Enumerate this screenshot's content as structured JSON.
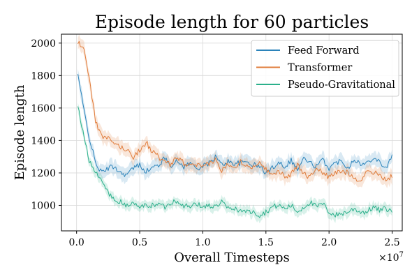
{
  "chart_data": {
    "type": "line",
    "title": "Episode length for 60 particles",
    "xlabel": "Overall Timesteps",
    "ylabel": "Episode length",
    "x_scale_label": "×10^7",
    "x_scale_base": "×10",
    "x_scale_exp": "7",
    "xlim": [
      -0.12,
      2.58
    ],
    "ylim": [
      843,
      2055
    ],
    "x_ticks": [
      0.0,
      0.5,
      1.0,
      1.5,
      2.0,
      2.5
    ],
    "x_tick_labels": [
      "0.0",
      "0.5",
      "1.0",
      "1.5",
      "2.0",
      "2.5"
    ],
    "y_ticks": [
      1000,
      1200,
      1400,
      1600,
      1800,
      2000
    ],
    "y_tick_labels": [
      "1000",
      "1200",
      "1400",
      "1600",
      "1800",
      "2000"
    ],
    "grid": true,
    "legend_position": "top-right",
    "series": [
      {
        "name": "Feed Forward",
        "color": "#2b83ba",
        "x": [
          0.01,
          0.05,
          0.1,
          0.15,
          0.2,
          0.25,
          0.3,
          0.35,
          0.4,
          0.45,
          0.5,
          0.55,
          0.6,
          0.65,
          0.7,
          0.75,
          0.8,
          0.85,
          0.9,
          0.95,
          1.0,
          1.05,
          1.1,
          1.15,
          1.2,
          1.25,
          1.3,
          1.35,
          1.4,
          1.45,
          1.5,
          1.55,
          1.6,
          1.65,
          1.7,
          1.75,
          1.8,
          1.85,
          1.9,
          1.95,
          2.0,
          2.05,
          2.1,
          2.15,
          2.2,
          2.25,
          2.3,
          2.35,
          2.4,
          2.45,
          2.5
        ],
        "y": [
          1810,
          1620,
          1420,
          1260,
          1200,
          1230,
          1240,
          1200,
          1190,
          1230,
          1250,
          1210,
          1230,
          1250,
          1290,
          1250,
          1270,
          1240,
          1260,
          1230,
          1240,
          1260,
          1300,
          1250,
          1270,
          1260,
          1260,
          1270,
          1250,
          1240,
          1200,
          1230,
          1270,
          1240,
          1280,
          1220,
          1290,
          1260,
          1240,
          1280,
          1230,
          1260,
          1280,
          1230,
          1290,
          1250,
          1260,
          1300,
          1270,
          1230,
          1300
        ],
        "band": 40
      },
      {
        "name": "Transformer",
        "color": "#e07b39",
        "x": [
          0.01,
          0.05,
          0.1,
          0.15,
          0.2,
          0.25,
          0.3,
          0.35,
          0.4,
          0.45,
          0.5,
          0.55,
          0.6,
          0.65,
          0.7,
          0.75,
          0.8,
          0.85,
          0.9,
          0.95,
          1.0,
          1.05,
          1.1,
          1.15,
          1.2,
          1.25,
          1.3,
          1.35,
          1.4,
          1.45,
          1.5,
          1.55,
          1.6,
          1.65,
          1.7,
          1.75,
          1.8,
          1.85,
          1.9,
          1.95,
          2.0,
          2.05,
          2.1,
          2.15,
          2.2,
          2.25,
          2.3,
          2.35,
          2.4,
          2.45,
          2.5
        ],
        "y": [
          1995,
          1990,
          1780,
          1520,
          1420,
          1410,
          1380,
          1360,
          1340,
          1300,
          1340,
          1390,
          1330,
          1300,
          1260,
          1250,
          1300,
          1260,
          1240,
          1250,
          1230,
          1260,
          1280,
          1210,
          1260,
          1240,
          1270,
          1250,
          1230,
          1280,
          1220,
          1200,
          1210,
          1180,
          1190,
          1250,
          1200,
          1170,
          1240,
          1200,
          1170,
          1200,
          1210,
          1200,
          1180,
          1140,
          1220,
          1200,
          1190,
          1160,
          1180
        ],
        "band": 40
      },
      {
        "name": "Pseudo-Gravitational",
        "color": "#2bb08b",
        "x": [
          0.01,
          0.05,
          0.1,
          0.15,
          0.2,
          0.25,
          0.3,
          0.35,
          0.4,
          0.45,
          0.5,
          0.55,
          0.6,
          0.65,
          0.7,
          0.75,
          0.8,
          0.85,
          0.9,
          0.95,
          1.0,
          1.05,
          1.1,
          1.15,
          1.2,
          1.25,
          1.3,
          1.35,
          1.4,
          1.45,
          1.5,
          1.55,
          1.6,
          1.65,
          1.7,
          1.75,
          1.8,
          1.85,
          1.9,
          1.95,
          2.0,
          2.05,
          2.1,
          2.15,
          2.2,
          2.25,
          2.3,
          2.35,
          2.4,
          2.45,
          2.5
        ],
        "y": [
          1610,
          1460,
          1280,
          1200,
          1150,
          1080,
          1030,
          1020,
          1000,
          1010,
          990,
          1000,
          1000,
          1010,
          990,
          1020,
          1030,
          1000,
          990,
          1010,
          990,
          1000,
          990,
          1020,
          980,
          980,
          970,
          960,
          960,
          940,
          960,
          990,
          1000,
          980,
          1000,
          960,
          990,
          1020,
          990,
          1010,
          960,
          940,
          950,
          960,
          980,
          960,
          960,
          990,
          970,
          980,
          960
        ],
        "band": 30
      }
    ]
  }
}
